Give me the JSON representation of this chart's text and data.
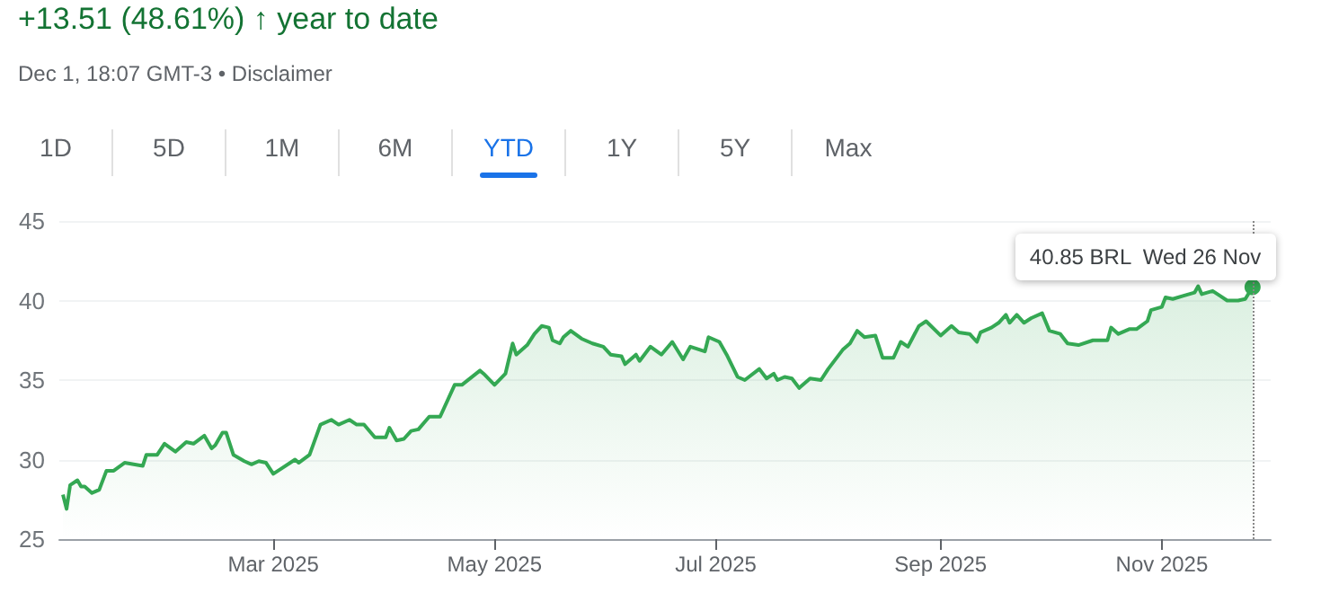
{
  "chart_data": {
    "type": "area",
    "title": "+13.51 (48.61%) ↑ year to date",
    "subtitle": "Dec 1, 18:07 GMT-3 • Disclaimer",
    "annotations": [
      "1D",
      "5D",
      "1M",
      "6M",
      "YTD",
      "1Y",
      "5Y",
      "Max",
      {
        "text": "40.85 BRL  Wed 26 Nov",
        "x": "2025-11-26",
        "y": 40.85
      }
    ],
    "x": [
      "2025-01-02",
      "2025-01-03",
      "2025-01-04",
      "2025-01-06",
      "2025-01-07",
      "2025-01-08",
      "2025-01-10",
      "2025-01-12",
      "2025-01-14",
      "2025-01-16",
      "2025-01-19",
      "2025-01-24",
      "2025-01-25",
      "2025-01-28",
      "2025-01-30",
      "2025-02-02",
      "2025-02-05",
      "2025-02-07",
      "2025-02-10",
      "2025-02-12",
      "2025-02-13",
      "2025-02-15",
      "2025-02-16",
      "2025-02-18",
      "2025-02-21",
      "2025-02-23",
      "2025-02-25",
      "2025-02-27",
      "2025-03-01",
      "2025-03-03",
      "2025-03-07",
      "2025-03-08",
      "2025-03-11",
      "2025-03-14",
      "2025-03-17",
      "2025-03-19",
      "2025-03-22",
      "2025-03-24",
      "2025-03-26",
      "2025-03-29",
      "2025-04-01",
      "2025-04-02",
      "2025-04-04",
      "2025-04-06",
      "2025-04-08",
      "2025-04-10",
      "2025-04-13",
      "2025-04-16",
      "2025-04-20",
      "2025-04-22",
      "2025-04-27",
      "2025-04-28",
      "2025-05-01",
      "2025-05-04",
      "2025-05-06",
      "2025-05-07",
      "2025-05-10",
      "2025-05-12",
      "2025-05-14",
      "2025-05-16",
      "2025-05-17",
      "2025-05-19",
      "2025-05-20",
      "2025-05-22",
      "2025-05-25",
      "2025-05-28",
      "2025-05-31",
      "2025-06-02",
      "2025-06-05",
      "2025-06-06",
      "2025-06-09",
      "2025-06-10",
      "2025-06-13",
      "2025-06-16",
      "2025-06-19",
      "2025-06-22",
      "2025-06-24",
      "2025-06-28",
      "2025-06-29",
      "2025-07-02",
      "2025-07-04",
      "2025-07-07",
      "2025-07-09",
      "2025-07-13",
      "2025-07-15",
      "2025-07-17",
      "2025-07-18",
      "2025-07-20",
      "2025-07-22",
      "2025-07-24",
      "2025-07-27",
      "2025-07-30",
      "2025-08-01",
      "2025-08-05",
      "2025-08-07",
      "2025-08-09",
      "2025-08-11",
      "2025-08-14",
      "2025-08-16",
      "2025-08-19",
      "2025-08-21",
      "2025-08-23",
      "2025-08-26",
      "2025-08-28",
      "2025-09-01",
      "2025-09-04",
      "2025-09-06",
      "2025-09-09",
      "2025-09-11",
      "2025-09-12",
      "2025-09-15",
      "2025-09-17",
      "2025-09-19",
      "2025-09-20",
      "2025-09-22",
      "2025-09-24",
      "2025-09-26",
      "2025-09-29",
      "2025-10-01",
      "2025-10-04",
      "2025-10-06",
      "2025-10-09",
      "2025-10-13",
      "2025-10-17",
      "2025-10-18",
      "2025-10-20",
      "2025-10-23",
      "2025-10-25",
      "2025-10-28",
      "2025-10-29",
      "2025-11-01",
      "2025-11-02",
      "2025-11-04",
      "2025-11-07",
      "2025-11-10",
      "2025-11-11",
      "2025-11-12",
      "2025-11-15",
      "2025-11-17",
      "2025-11-19",
      "2025-11-22",
      "2025-11-24",
      "2025-11-26"
    ],
    "series": [
      {
        "color": "#34a853",
        "values": [
          27.8,
          26.9,
          28.4,
          28.7,
          28.3,
          28.3,
          27.9,
          28.1,
          29.3,
          29.3,
          29.8,
          29.6,
          30.3,
          30.3,
          31.0,
          30.5,
          31.1,
          31.0,
          31.5,
          30.7,
          30.9,
          31.7,
          31.7,
          30.3,
          29.9,
          29.7,
          29.9,
          29.8,
          29.1,
          29.4,
          30.0,
          29.8,
          30.3,
          32.2,
          32.5,
          32.2,
          32.5,
          32.2,
          32.2,
          31.4,
          31.4,
          32.0,
          31.2,
          31.3,
          31.8,
          31.9,
          32.7,
          32.7,
          34.7,
          34.7,
          35.6,
          35.4,
          34.7,
          35.4,
          37.3,
          36.6,
          37.2,
          37.9,
          38.4,
          38.3,
          37.5,
          37.3,
          37.7,
          38.1,
          37.6,
          37.3,
          37.1,
          36.6,
          36.5,
          36.0,
          36.6,
          36.2,
          37.1,
          36.6,
          37.4,
          36.3,
          37.1,
          36.8,
          37.7,
          37.4,
          36.6,
          35.2,
          35.0,
          35.7,
          35.1,
          35.4,
          35.0,
          35.2,
          35.1,
          34.5,
          35.1,
          35.0,
          35.7,
          36.9,
          37.3,
          38.1,
          37.7,
          37.8,
          36.4,
          36.4,
          37.4,
          37.1,
          38.4,
          38.7,
          37.8,
          38.4,
          38.0,
          37.9,
          37.4,
          38.0,
          38.3,
          38.6,
          39.1,
          38.6,
          39.1,
          38.6,
          38.9,
          39.2,
          38.1,
          37.9,
          37.3,
          37.2,
          37.5,
          37.5,
          38.3,
          37.9,
          38.2,
          38.2,
          38.7,
          39.4,
          39.6,
          40.2,
          40.1,
          40.3,
          40.5,
          40.9,
          40.4,
          40.6,
          40.3,
          40.0,
          40.0,
          40.1,
          40.85
        ]
      }
    ],
    "xlim": [
      "2025-01-01",
      "2025-12-01"
    ],
    "xticks": [
      {
        "value": "2025-03-01",
        "label": "Mar 2025"
      },
      {
        "value": "2025-05-01",
        "label": "May 2025"
      },
      {
        "value": "2025-07-01",
        "label": "Jul 2025"
      },
      {
        "value": "2025-09-01",
        "label": "Sep 2025"
      },
      {
        "value": "2025-11-01",
        "label": "Nov 2025"
      }
    ],
    "ylim": [
      25,
      45
    ],
    "yticks": [
      25,
      30,
      35,
      40,
      45
    ],
    "grid": "y",
    "line_style": "solid",
    "ref_lines": [
      {
        "axis": "x",
        "value": "2025-11-26",
        "color": "#888888",
        "line_style": "dotted"
      }
    ]
  }
}
